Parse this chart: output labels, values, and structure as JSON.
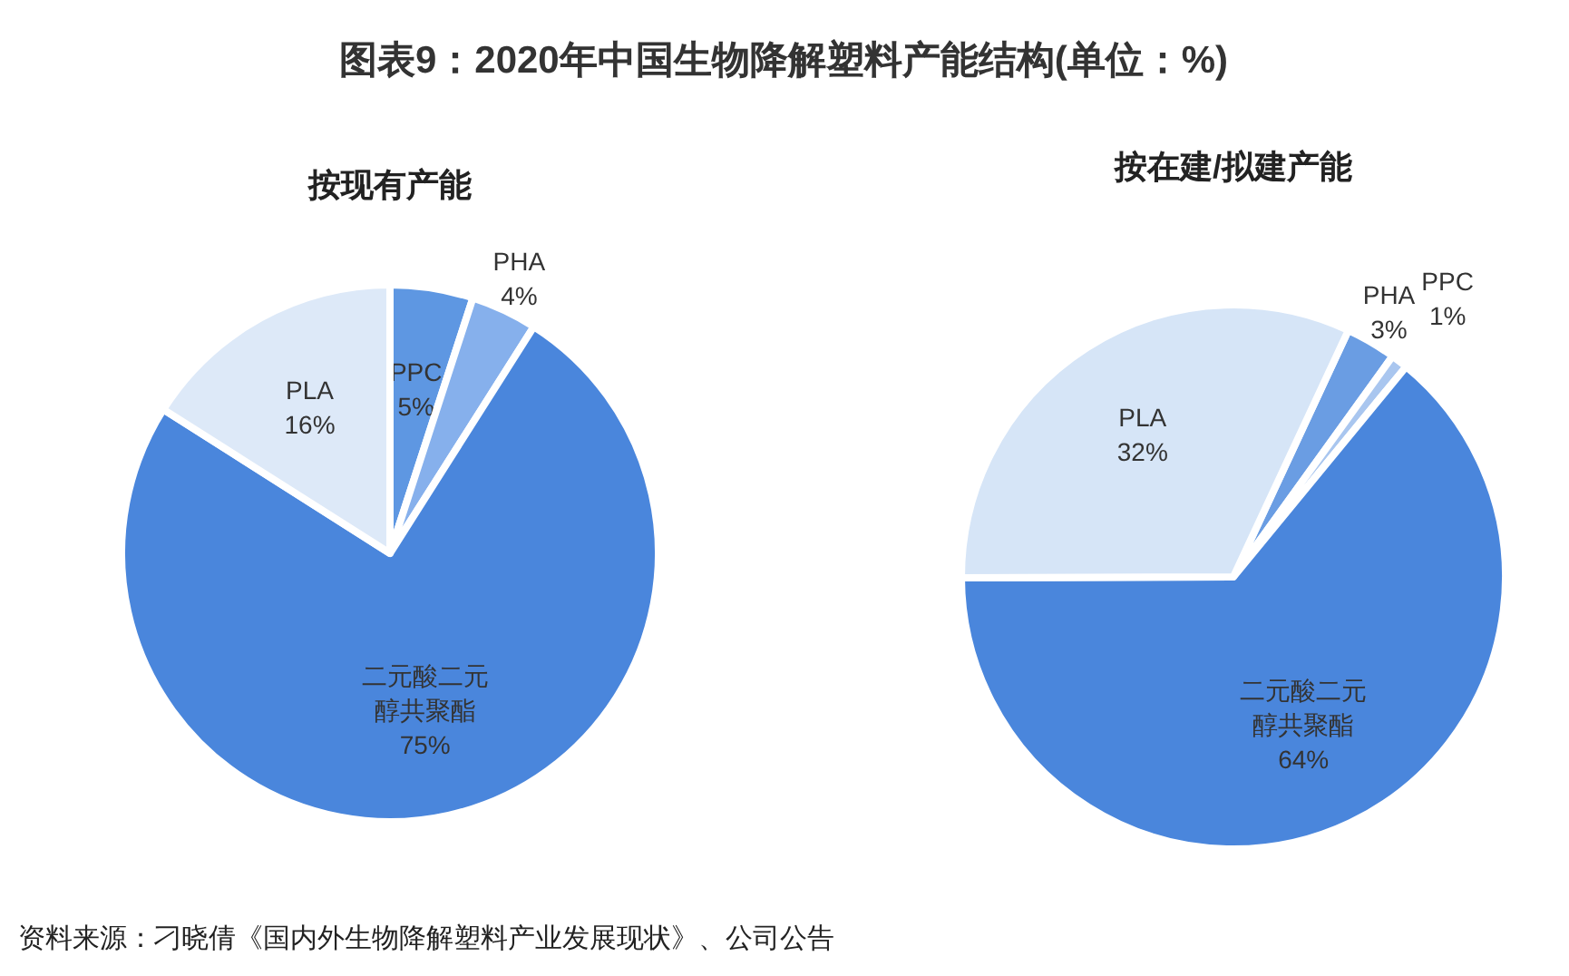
{
  "chart_data": [
    {
      "type": "other",
      "title": "图表9：2020年中国生物降解塑料产能结构(单位：%)",
      "annotations": [
        "资料来源：刁晓倩《国内外生物降解塑料产业发展现状》、公司公告"
      ]
    },
    {
      "type": "pie",
      "title": "按现有产能",
      "categories": [
        "PPC",
        "PHA",
        "二元酸二元醇共聚酯",
        "PLA"
      ],
      "values": [
        5,
        4,
        75,
        16
      ],
      "value_labels": [
        "5%",
        "4%",
        "75%",
        "16%"
      ],
      "colors": [
        "#5e97e2",
        "#86b0ec",
        "#4a86dc",
        "#dde9f8"
      ]
    },
    {
      "type": "pie",
      "title": "按在建/拟建产能",
      "categories": [
        "PHA",
        "PPC",
        "二元酸二元醇共聚酯",
        "PLA"
      ],
      "values": [
        3,
        1,
        64,
        32
      ],
      "value_labels": [
        "3%",
        "1%",
        "64%",
        "32%"
      ],
      "colors": [
        "#6a9de3",
        "#a9c6ef",
        "#4a86dc",
        "#d6e5f7"
      ]
    }
  ]
}
